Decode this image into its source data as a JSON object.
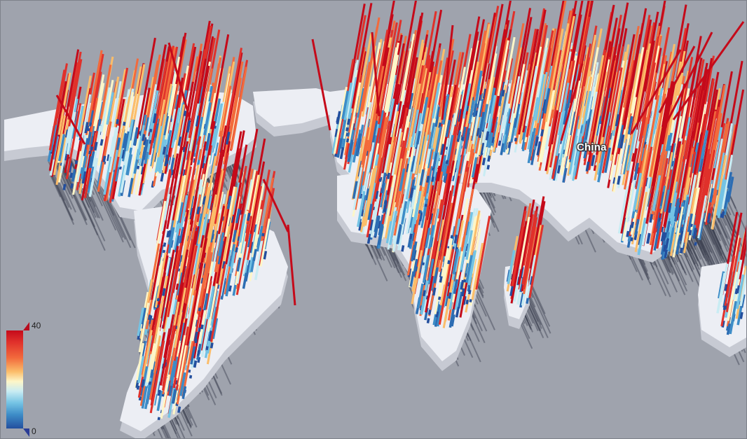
{
  "map": {
    "label": "China"
  },
  "legend": {
    "max_label": "40",
    "min_label": "0",
    "max_value": 40,
    "min_value": 0,
    "colors": [
      "#c50a1a",
      "#f26a3c",
      "#fbbd6a",
      "#fdf6c8",
      "#74c3e4",
      "#3d8cc7",
      "#234f9e"
    ]
  },
  "colors": {
    "background": "#9fa3ad",
    "land": "#e9ebf2"
  }
}
